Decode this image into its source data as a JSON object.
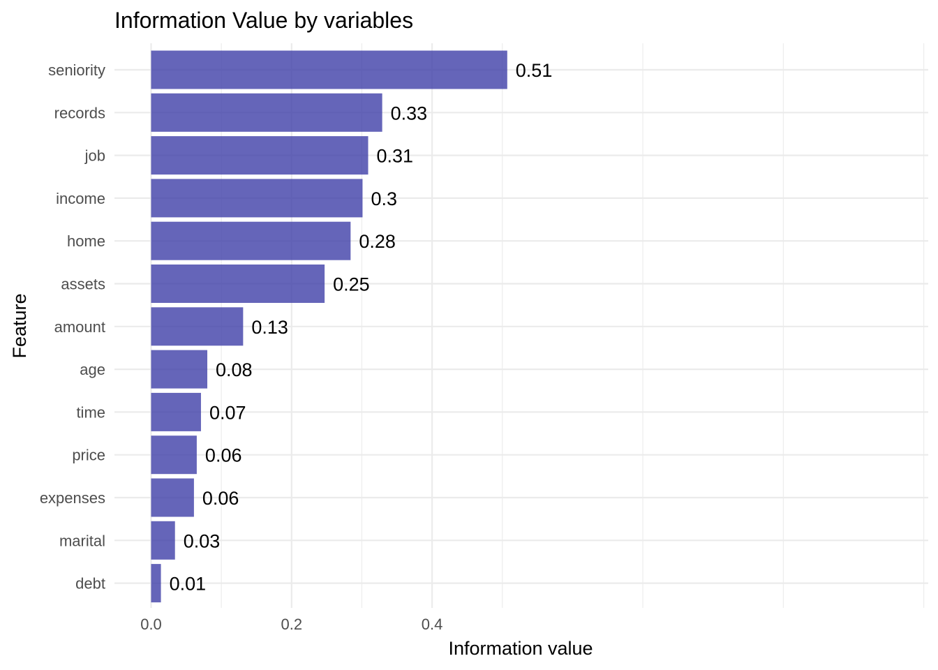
{
  "chart_data": {
    "type": "bar",
    "orientation": "horizontal",
    "title": "Information Value by variables",
    "xlabel": "Information value",
    "ylabel": "Feature",
    "categories": [
      "seniority",
      "records",
      "job",
      "income",
      "home",
      "assets",
      "amount",
      "age",
      "time",
      "price",
      "expenses",
      "marital",
      "debt"
    ],
    "values": [
      0.507,
      0.329,
      0.309,
      0.301,
      0.284,
      0.247,
      0.131,
      0.08,
      0.071,
      0.065,
      0.061,
      0.034,
      0.014
    ],
    "data_labels": [
      "0.51",
      "0.33",
      "0.31",
      "0.3",
      "0.28",
      "0.25",
      "0.13",
      "0.08",
      "0.07",
      "0.06",
      "0.06",
      "0.03",
      "0.01"
    ],
    "xticks": [
      0.0,
      0.2,
      0.4
    ],
    "xtick_labels": [
      "0.0",
      "0.2",
      "0.4"
    ],
    "xlim": [
      -0.026,
      0.55
    ],
    "grid": true,
    "legend": "none",
    "bar_color": "#3f3fa8",
    "bar_opacity": 0.8
  }
}
